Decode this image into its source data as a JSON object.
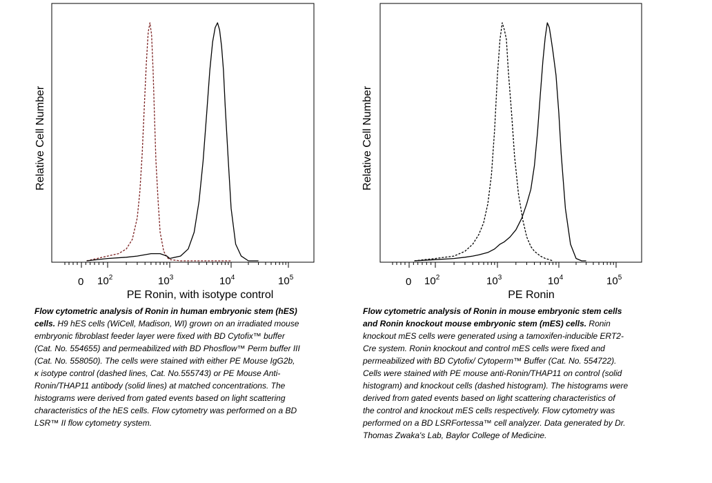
{
  "chart_data": [
    {
      "type": "line",
      "title": "",
      "xlabel": "PE Ronin, with isotype control",
      "ylabel": "Relative Cell Number",
      "x_scale": "biexponential",
      "x_tick_labels": [
        "0",
        "10^2",
        "10^3",
        "10^4",
        "10^5"
      ],
      "series": [
        {
          "style": "dashed",
          "color": "#7a1f1f",
          "x": [
            20,
            60,
            100,
            150,
            200,
            250,
            300,
            330,
            360,
            390,
            420,
            450,
            480,
            510,
            540,
            570,
            600,
            650,
            700,
            800,
            900,
            1000,
            1500,
            3000,
            10000
          ],
          "y": [
            0,
            0.01,
            0.02,
            0.03,
            0.05,
            0.09,
            0.18,
            0.29,
            0.45,
            0.65,
            0.83,
            0.96,
            1.0,
            0.95,
            0.8,
            0.6,
            0.42,
            0.25,
            0.12,
            0.04,
            0.015,
            0.005,
            0,
            0,
            0
          ]
        },
        {
          "style": "solid",
          "color": "#000000",
          "x": [
            20,
            100,
            200,
            300,
            500,
            700,
            900,
            1000,
            1500,
            2000,
            2500,
            3000,
            3500,
            4000,
            4500,
            5000,
            5500,
            6000,
            6500,
            7000,
            7500,
            8000,
            9000,
            10000,
            12000,
            15000,
            20000,
            30000
          ],
          "y": [
            0,
            0.01,
            0.015,
            0.02,
            0.03,
            0.03,
            0.02,
            0.01,
            0.02,
            0.05,
            0.12,
            0.25,
            0.42,
            0.62,
            0.8,
            0.92,
            0.98,
            1.0,
            0.97,
            0.9,
            0.8,
            0.65,
            0.42,
            0.22,
            0.07,
            0.02,
            0,
            0
          ]
        }
      ]
    },
    {
      "type": "line",
      "title": "",
      "xlabel": "PE Ronin",
      "ylabel": "Relative Cell Number",
      "x_scale": "biexponential",
      "x_tick_labels": [
        "0",
        "10^2",
        "10^3",
        "10^4",
        "10^5"
      ],
      "series": [
        {
          "style": "dashed",
          "color": "#000000",
          "x": [
            20,
            100,
            200,
            300,
            400,
            500,
            600,
            700,
            800,
            900,
            1000,
            1100,
            1200,
            1300,
            1400,
            1500,
            1700,
            1900,
            2200,
            2600,
            3000,
            3500,
            4000,
            5000,
            6000,
            8000
          ],
          "y": [
            0,
            0.01,
            0.02,
            0.04,
            0.07,
            0.11,
            0.16,
            0.24,
            0.36,
            0.55,
            0.78,
            0.93,
            1.0,
            0.97,
            0.93,
            0.8,
            0.62,
            0.44,
            0.28,
            0.17,
            0.1,
            0.06,
            0.04,
            0.02,
            0.01,
            0
          ]
        },
        {
          "style": "solid",
          "color": "#000000",
          "x": [
            20,
            100,
            200,
            300,
            400,
            500,
            700,
            900,
            1100,
            1300,
            1600,
            2000,
            2500,
            3000,
            3500,
            4000,
            4500,
            5000,
            5500,
            6000,
            6500,
            7000,
            7500,
            8000,
            9000,
            10000,
            11000,
            13000,
            16000,
            20000,
            25000,
            30000
          ],
          "y": [
            0,
            0.005,
            0.01,
            0.015,
            0.02,
            0.025,
            0.035,
            0.05,
            0.07,
            0.08,
            0.1,
            0.13,
            0.18,
            0.24,
            0.3,
            0.4,
            0.54,
            0.7,
            0.84,
            0.94,
            1.0,
            0.98,
            0.93,
            0.88,
            0.78,
            0.62,
            0.45,
            0.22,
            0.07,
            0.01,
            0,
            0
          ]
        }
      ]
    }
  ],
  "captions": [
    {
      "bold": "Flow cytometric analysis of Ronin in human embryonic stem (hES) cells.",
      "text": " H9 hES cells (WiCell, Madison, WI) grown on an irradiated mouse embryonic fibroblast feeder layer were fixed with BD Cytofix™ buffer (Cat. No. 554655) and permeabilized with BD Phosflow™ Perm buffer III (Cat. No. 558050). The cells were stained with either PE Mouse IgG2b, κ isotype control (dashed lines, Cat. No.555743) or PE Mouse Anti-Ronin/THAP11 antibody (solid lines) at matched concentrations. The histograms were derived from gated events based on light scattering characteristics of the hES cells. Flow cytometry was performed on a BD LSR™ II flow cytometry system."
    },
    {
      "bold": "Flow cytometric analysis of Ronin in mouse embryonic stem cells and Ronin knockout mouse embryonic stem (mES) cells.",
      "text": "  Ronin knockout mES cells were generated using a tamoxifen-inducible ERT2-Cre system. Ronin knockout and control mES cells were fixed and permeabilized with BD Cytofix/ Cytoperm™ Buffer (Cat. No. 554722). Cells were stained with PE mouse anti-Ronin/THAP11 on control (solid histogram) and knockout cells (dashed histogram). The histograms were derived from gated events based on light scattering characteristics of the control and knockout mES cells respectively. Flow cytometry was performed on a BD LSRFortessa™ cell analyzer. Data generated by Dr. Thomas Zwaka's Lab, Baylor College of Medicine."
    }
  ]
}
